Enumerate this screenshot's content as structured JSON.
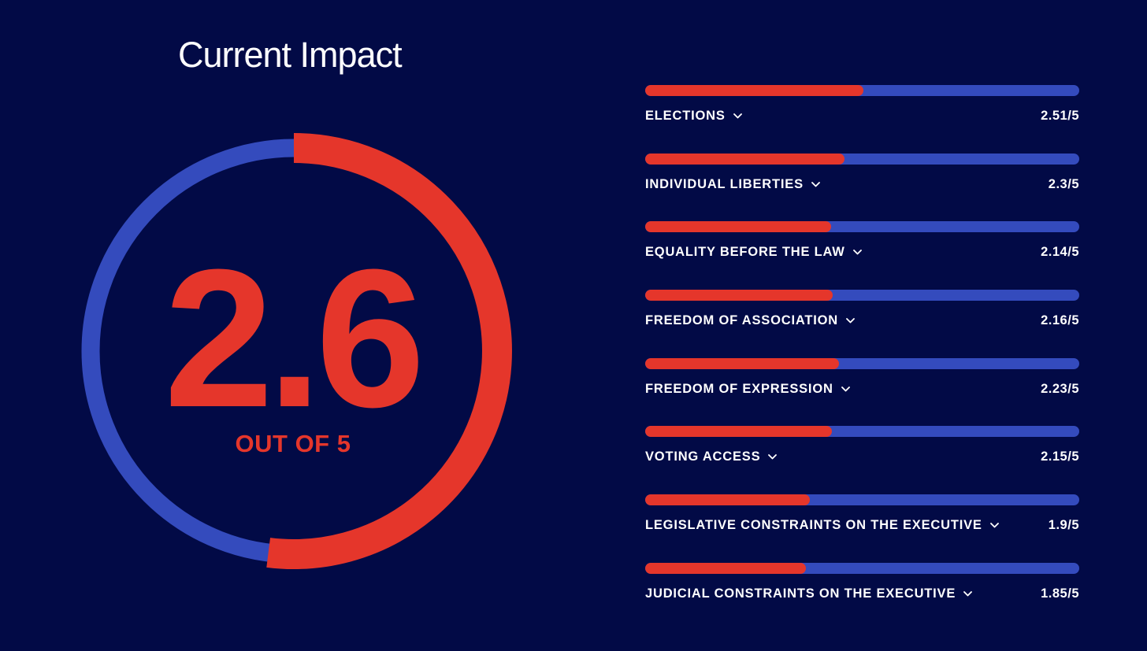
{
  "header": {
    "title": "Current Impact"
  },
  "overall": {
    "score": 2.6,
    "score_text": "2.6",
    "max": 5,
    "caption": "OUT OF 5"
  },
  "colors": {
    "background": "#020a46",
    "accent_red": "#e5362b",
    "track_blue": "#344bbd",
    "text": "#ffffff"
  },
  "metrics": [
    {
      "label": "ELECTIONS",
      "value": 2.51,
      "value_text": "2.51/5",
      "icon": "chevron-down-icon"
    },
    {
      "label": "INDIVIDUAL LIBERTIES",
      "value": 2.3,
      "value_text": "2.3/5",
      "icon": "chevron-down-icon"
    },
    {
      "label": "EQUALITY BEFORE THE LAW",
      "value": 2.14,
      "value_text": "2.14/5",
      "icon": "chevron-down-icon"
    },
    {
      "label": "FREEDOM OF ASSOCIATION",
      "value": 2.16,
      "value_text": "2.16/5",
      "icon": "chevron-down-icon"
    },
    {
      "label": "FREEDOM OF EXPRESSION",
      "value": 2.23,
      "value_text": "2.23/5",
      "icon": "chevron-down-icon"
    },
    {
      "label": "VOTING ACCESS",
      "value": 2.15,
      "value_text": "2.15/5",
      "icon": "chevron-down-icon"
    },
    {
      "label": "LEGISLATIVE CONSTRAINTS ON THE EXECUTIVE",
      "value": 1.9,
      "value_text": "1.9/5",
      "icon": "chevron-down-icon"
    },
    {
      "label": "JUDICIAL CONSTRAINTS ON THE EXECUTIVE",
      "value": 1.85,
      "value_text": "1.85/5",
      "icon": "chevron-down-icon"
    }
  ]
}
